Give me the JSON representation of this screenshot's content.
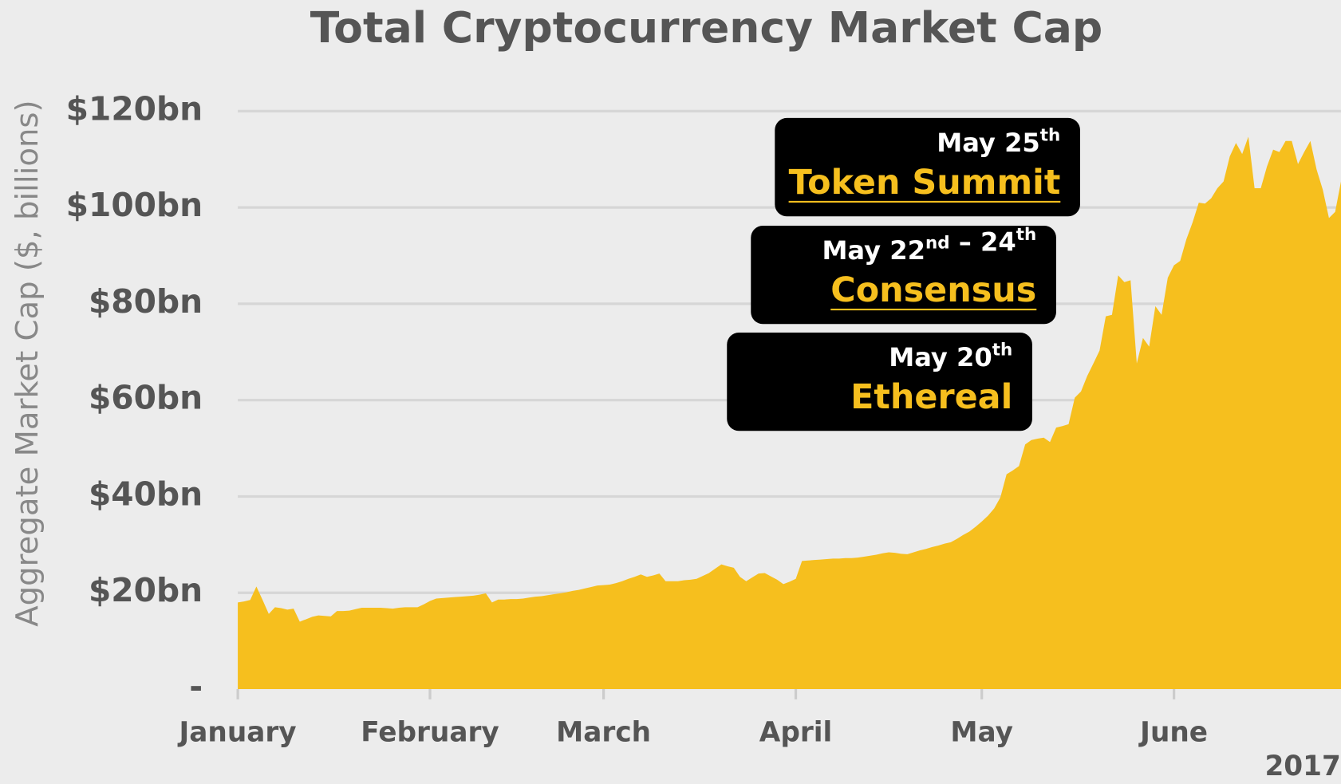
{
  "chart_data": {
    "type": "area",
    "title": "Total Cryptocurrency Market Cap",
    "y_label": "Aggregate Market Cap ($, billions)",
    "year_label": "2017",
    "color": "#f6bf1e",
    "grid": true,
    "ylim": [
      0,
      120
    ],
    "yticks": [
      {
        "value": 0,
        "label": "-"
      },
      {
        "value": 20,
        "label": "$20bn"
      },
      {
        "value": 40,
        "label": "$40bn"
      },
      {
        "value": 60,
        "label": "$60bn"
      },
      {
        "value": 80,
        "label": "$80bn"
      },
      {
        "value": 100,
        "label": "$100bn"
      },
      {
        "value": 120,
        "label": "$120bn"
      }
    ],
    "categories": [
      "January",
      null,
      null,
      null,
      null,
      null,
      null,
      null,
      null,
      null,
      null,
      null,
      null,
      null,
      null,
      null,
      null,
      null,
      null,
      null,
      null,
      null,
      null,
      null,
      null,
      null,
      null,
      null,
      null,
      null,
      null,
      "February",
      null,
      null,
      null,
      null,
      null,
      null,
      null,
      null,
      null,
      null,
      null,
      null,
      null,
      null,
      null,
      null,
      null,
      null,
      null,
      null,
      null,
      null,
      null,
      null,
      null,
      null,
      null,
      "March",
      null,
      null,
      null,
      null,
      null,
      null,
      null,
      null,
      null,
      null,
      null,
      null,
      null,
      null,
      null,
      null,
      null,
      null,
      null,
      null,
      null,
      null,
      null,
      null,
      null,
      null,
      null,
      null,
      null,
      null,
      "April",
      null,
      null,
      null,
      null,
      null,
      null,
      null,
      null,
      null,
      null,
      null,
      null,
      null,
      null,
      null,
      null,
      null,
      null,
      null,
      null,
      null,
      null,
      null,
      null,
      null,
      null,
      null,
      null,
      null,
      "May",
      null,
      null,
      null,
      null,
      null,
      null,
      null,
      null,
      null,
      null,
      null,
      null,
      null,
      null,
      null,
      null,
      null,
      null,
      null,
      null,
      null,
      null,
      null,
      null,
      null,
      null,
      null,
      null,
      null,
      null,
      "June",
      null,
      null,
      null,
      null,
      null,
      null,
      null,
      null,
      null,
      null,
      null,
      null,
      null,
      null,
      null,
      null,
      null,
      null,
      null,
      null,
      null,
      null,
      null,
      null,
      null,
      null,
      null
    ],
    "values": [
      18,
      18.2,
      18.5,
      21.3,
      18.5,
      15.6,
      17,
      16.8,
      16.5,
      16.7,
      14,
      14.5,
      15,
      15.3,
      15.2,
      15.1,
      16.2,
      16.2,
      16.3,
      16.6,
      16.9,
      16.9,
      16.9,
      16.9,
      16.8,
      16.7,
      16.9,
      17,
      17,
      17,
      17.6,
      18.3,
      18.8,
      18.9,
      19,
      19.1,
      19.2,
      19.3,
      19.4,
      19.6,
      19.9,
      18,
      18.6,
      18.6,
      18.7,
      18.7,
      18.8,
      19,
      19.2,
      19.3,
      19.5,
      19.7,
      19.9,
      20.1,
      20.4,
      20.6,
      20.9,
      21.2,
      21.5,
      21.6,
      21.7,
      22,
      22.4,
      22.9,
      23.3,
      23.8,
      23.3,
      23.6,
      24,
      22.4,
      22.4,
      22.4,
      22.6,
      22.7,
      22.9,
      23.5,
      24.1,
      25,
      25.9,
      25.5,
      25.2,
      23.3,
      22.4,
      23.2,
      24,
      24.1,
      23.4,
      22.7,
      21.8,
      22.3,
      22.9,
      26.6,
      26.7,
      26.8,
      26.9,
      27,
      27.1,
      27.1,
      27.2,
      27.2,
      27.3,
      27.5,
      27.7,
      27.9,
      28.2,
      28.4,
      28.3,
      28.1,
      28,
      28.4,
      28.8,
      29.1,
      29.5,
      29.8,
      30.2,
      30.5,
      31.2,
      32,
      32.7,
      33.7,
      34.8,
      36,
      37.5,
      39.8,
      44.6,
      45.4,
      46.3,
      50.8,
      51.7,
      52,
      52.2,
      51.3,
      54.3,
      54.6,
      55,
      60.5,
      61.8,
      65,
      67.6,
      70.3,
      77.4,
      77.7,
      85.9,
      84.5,
      84.9,
      67.6,
      72.9,
      71.1,
      79.5,
      77.7,
      85.4,
      88,
      88.9,
      93.4,
      96.9,
      101,
      100.8,
      101.9,
      104,
      105.4,
      110.6,
      113.4,
      111.1,
      114.7,
      104,
      104,
      108.5,
      112,
      111.5,
      113.8,
      113.8,
      109,
      111.5,
      113.8,
      107.9,
      103.7,
      97.8,
      99.1,
      105.8
    ],
    "annotations": [
      {
        "date": [
          {
            "text": "May 25",
            "sup": "th"
          }
        ],
        "event": "Token Summit",
        "underline": true
      },
      {
        "date": [
          {
            "text": "May 22",
            "sup": "nd"
          },
          {
            "text": " – 24",
            "sup": "th"
          }
        ],
        "event": "Consensus",
        "underline": true
      },
      {
        "date": [
          {
            "text": "May 20",
            "sup": "th"
          }
        ],
        "event": "Ethereal",
        "underline": false
      }
    ]
  }
}
